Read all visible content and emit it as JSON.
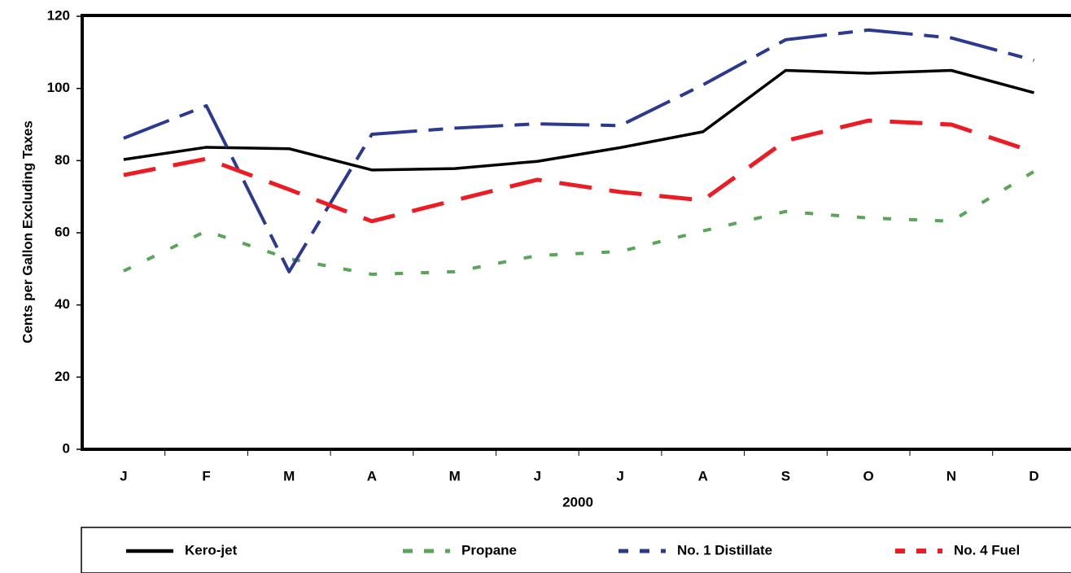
{
  "chart_data": {
    "type": "line",
    "x_label": "2000",
    "y_label": "Cents per Gallon Excluding Taxes",
    "categories": [
      "J",
      "F",
      "M",
      "A",
      "M",
      "J",
      "J",
      "A",
      "S",
      "O",
      "N",
      "D"
    ],
    "series": [
      {
        "name": "Kero-jet",
        "color": "#000000",
        "values": [
          80.3,
          83.7,
          83.3,
          77.4,
          77.8,
          79.8,
          83.6,
          88,
          105,
          104.2,
          105,
          98.8
        ]
      },
      {
        "name": "Propane",
        "color": "#5aa55a",
        "values": [
          49.4,
          60.5,
          52.8,
          48.5,
          49.2,
          53.7,
          54.8,
          60.5,
          65.9,
          64.1,
          63.2,
          77
        ]
      },
      {
        "name": "No. 1 Distillate",
        "color": "#2b3990",
        "values": [
          86.2,
          95.2,
          49.2,
          87.3,
          89,
          90.2,
          89.7,
          101,
          113.5,
          116.2,
          114,
          107.8
        ]
      },
      {
        "name": "No. 4 Fuel",
        "color": "#ed1c24",
        "values": [
          76,
          80.5,
          72,
          63.2,
          69,
          74.7,
          71.3,
          69,
          85.5,
          91.1,
          90,
          82.4
        ]
      }
    ],
    "ylim": [
      0,
      120
    ],
    "yticks": [
      0,
      20,
      40,
      60,
      80,
      100,
      120
    ],
    "grid": false,
    "legend": "bottom"
  }
}
